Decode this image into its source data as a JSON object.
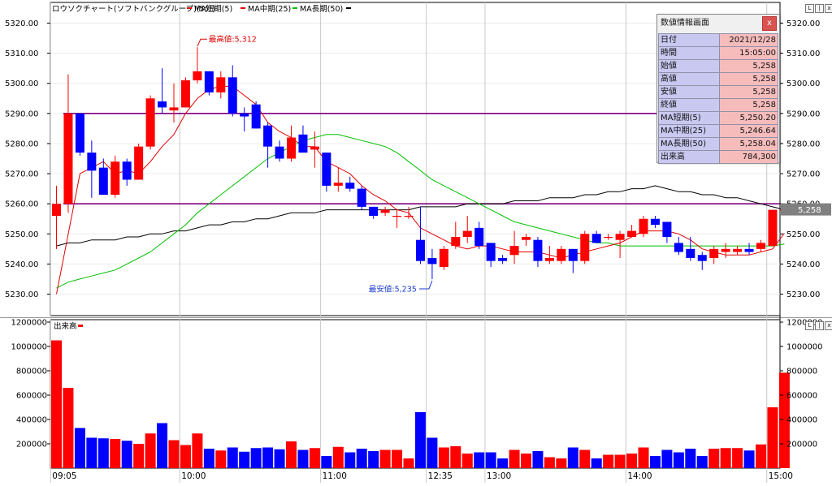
{
  "title_bar": {
    "symbol_label": "ロウソクチャート(ソフトバンクグループ)(5分)",
    "ma_legend": [
      {
        "label": "MA短期(5)",
        "color": "#e00000"
      },
      {
        "label": "MA中期(25)",
        "color": "#e00000"
      },
      {
        "label": "MA長期(50)",
        "color": "#00c000"
      }
    ],
    "legend_end_color": "#000000"
  },
  "window_buttons": [
    "L",
    "|",
    "x"
  ],
  "volume_panel_label": "出来高",
  "info_panel": {
    "title": "数値情報画面",
    "close_label": "x",
    "rows": [
      {
        "key": "日付",
        "value": "2021/12/28"
      },
      {
        "key": "時間",
        "value": "15:05:00"
      },
      {
        "key": "始値",
        "value": "5,258"
      },
      {
        "key": "高値",
        "value": "5,258"
      },
      {
        "key": "安値",
        "value": "5,258"
      },
      {
        "key": "終値",
        "value": "5,258"
      },
      {
        "key": "MA短期(5)",
        "value": "5,250.20"
      },
      {
        "key": "MA中期(25)",
        "value": "5,246.64"
      },
      {
        "key": "MA長期(50)",
        "value": "5,258.04"
      },
      {
        "key": "出来高",
        "value": "784,300"
      }
    ]
  },
  "colors": {
    "up": "#ff0000",
    "down": "#0000ff",
    "ma_short": "#e00000",
    "ma_mid": "#00c000",
    "ma_long": "#000000",
    "hline": "#800080",
    "current_price_bg": "#808080"
  },
  "chart_data": {
    "type": "candlestick",
    "price_axis": {
      "min": 5226,
      "max": 5324,
      "ticks": [
        5230,
        5240,
        5250,
        5260,
        5270,
        5280,
        5290,
        5300,
        5310,
        5320
      ],
      "tick_labels": [
        "5230.00",
        "5240.00",
        "5250.00",
        "5260.00",
        "5270.00",
        "5280.00",
        "5290.00",
        "5300.00",
        "5310.00",
        "5320.00"
      ]
    },
    "volume_axis": {
      "min": 0,
      "max": 1200000,
      "ticks": [
        200000,
        400000,
        600000,
        800000,
        1000000,
        1200000
      ],
      "tick_labels": [
        "200000",
        "400000",
        "600000",
        "800000",
        "1000000",
        "1200000"
      ]
    },
    "time_labels": [
      {
        "label": "09:05",
        "index": 0
      },
      {
        "label": "10:00",
        "index": 11
      },
      {
        "label": "11:00",
        "index": 23
      },
      {
        "label": "12:35",
        "index": 32
      },
      {
        "label": "13:00",
        "index": 37
      },
      {
        "label": "14:00",
        "index": 49
      },
      {
        "label": "15:00",
        "index": 61
      }
    ],
    "candles": [
      {
        "o": 5256,
        "h": 5266,
        "l": 5245,
        "c": 5260,
        "v": 1050000
      },
      {
        "o": 5260,
        "h": 5303,
        "l": 5257,
        "c": 5290,
        "v": 660000
      },
      {
        "o": 5290,
        "h": 5290,
        "l": 5276,
        "c": 5277,
        "v": 330000
      },
      {
        "o": 5277,
        "h": 5281,
        "l": 5262,
        "c": 5271,
        "v": 250000
      },
      {
        "o": 5272,
        "h": 5275,
        "l": 5263,
        "c": 5263,
        "v": 245000
      },
      {
        "o": 5263,
        "h": 5276,
        "l": 5262,
        "c": 5274,
        "v": 240000
      },
      {
        "o": 5274,
        "h": 5275,
        "l": 5266,
        "c": 5268,
        "v": 225000
      },
      {
        "o": 5268,
        "h": 5280,
        "l": 5268,
        "c": 5279,
        "v": 200000
      },
      {
        "o": 5279,
        "h": 5296,
        "l": 5278,
        "c": 5295,
        "v": 285000
      },
      {
        "o": 5294,
        "h": 5305,
        "l": 5290,
        "c": 5292,
        "v": 370000
      },
      {
        "o": 5291,
        "h": 5300,
        "l": 5287,
        "c": 5292,
        "v": 230000
      },
      {
        "o": 5292,
        "h": 5302,
        "l": 5292,
        "c": 5301,
        "v": 190000
      },
      {
        "o": 5301,
        "h": 5312,
        "l": 5300,
        "c": 5304,
        "v": 285000
      },
      {
        "o": 5304,
        "h": 5304,
        "l": 5296,
        "c": 5297,
        "v": 160000
      },
      {
        "o": 5297,
        "h": 5304,
        "l": 5295,
        "c": 5302,
        "v": 145000
      },
      {
        "o": 5302,
        "h": 5306,
        "l": 5289,
        "c": 5290,
        "v": 170000
      },
      {
        "o": 5290,
        "h": 5292,
        "l": 5284,
        "c": 5289,
        "v": 135000
      },
      {
        "o": 5293,
        "h": 5294,
        "l": 5285,
        "c": 5285,
        "v": 165000
      },
      {
        "o": 5286,
        "h": 5287,
        "l": 5272,
        "c": 5279,
        "v": 170000
      },
      {
        "o": 5279,
        "h": 5281,
        "l": 5274,
        "c": 5275,
        "v": 155000
      },
      {
        "o": 5275,
        "h": 5286,
        "l": 5274,
        "c": 5282,
        "v": 220000
      },
      {
        "o": 5283,
        "h": 5286,
        "l": 5277,
        "c": 5277,
        "v": 150000
      },
      {
        "o": 5278,
        "h": 5284,
        "l": 5272,
        "c": 5279,
        "v": 165000
      },
      {
        "o": 5277,
        "h": 5277,
        "l": 5264,
        "c": 5266,
        "v": 100000
      },
      {
        "o": 5266,
        "h": 5272,
        "l": 5264,
        "c": 5267,
        "v": 175000
      },
      {
        "o": 5267,
        "h": 5269,
        "l": 5264,
        "c": 5265,
        "v": 130000
      },
      {
        "o": 5265,
        "h": 5266,
        "l": 5258,
        "c": 5259,
        "v": 160000
      },
      {
        "o": 5259,
        "h": 5259,
        "l": 5255,
        "c": 5256,
        "v": 140000
      },
      {
        "o": 5257,
        "h": 5259,
        "l": 5256,
        "c": 5258,
        "v": 150000
      },
      {
        "o": 5256,
        "h": 5258,
        "l": 5252,
        "c": 5256,
        "v": 150000
      },
      {
        "o": 5256,
        "h": 5259,
        "l": 5255,
        "c": 5256,
        "v": 80000
      },
      {
        "o": 5248,
        "h": 5259,
        "l": 5240,
        "c": 5241,
        "v": 460000
      },
      {
        "o": 5242,
        "h": 5245,
        "l": 5235,
        "c": 5240,
        "v": 250000
      },
      {
        "o": 5239,
        "h": 5246,
        "l": 5238,
        "c": 5245,
        "v": 170000
      },
      {
        "o": 5246,
        "h": 5254,
        "l": 5245,
        "c": 5249,
        "v": 180000
      },
      {
        "o": 5249,
        "h": 5256,
        "l": 5247,
        "c": 5251,
        "v": 120000
      },
      {
        "o": 5252,
        "h": 5254,
        "l": 5245,
        "c": 5246,
        "v": 130000
      },
      {
        "o": 5247,
        "h": 5247,
        "l": 5239,
        "c": 5241,
        "v": 130000
      },
      {
        "o": 5242,
        "h": 5243,
        "l": 5240,
        "c": 5241,
        "v": 80000
      },
      {
        "o": 5243,
        "h": 5251,
        "l": 5240,
        "c": 5246,
        "v": 150000
      },
      {
        "o": 5248,
        "h": 5250,
        "l": 5246,
        "c": 5249,
        "v": 120000
      },
      {
        "o": 5248,
        "h": 5249,
        "l": 5239,
        "c": 5241,
        "v": 140000
      },
      {
        "o": 5241,
        "h": 5246,
        "l": 5240,
        "c": 5242,
        "v": 90000
      },
      {
        "o": 5241,
        "h": 5246,
        "l": 5240,
        "c": 5245,
        "v": 80000
      },
      {
        "o": 5245,
        "h": 5245,
        "l": 5237,
        "c": 5241,
        "v": 170000
      },
      {
        "o": 5241,
        "h": 5251,
        "l": 5240,
        "c": 5250,
        "v": 150000
      },
      {
        "o": 5250,
        "h": 5251,
        "l": 5247,
        "c": 5247,
        "v": 80000
      },
      {
        "o": 5249,
        "h": 5250,
        "l": 5248,
        "c": 5249,
        "v": 110000
      },
      {
        "o": 5248,
        "h": 5251,
        "l": 5242,
        "c": 5250,
        "v": 110000
      },
      {
        "o": 5249,
        "h": 5253,
        "l": 5249,
        "c": 5251,
        "v": 120000
      },
      {
        "o": 5250,
        "h": 5256,
        "l": 5249,
        "c": 5255,
        "v": 170000
      },
      {
        "o": 5255,
        "h": 5256,
        "l": 5252,
        "c": 5253,
        "v": 100000
      },
      {
        "o": 5254,
        "h": 5254,
        "l": 5247,
        "c": 5249,
        "v": 150000
      },
      {
        "o": 5247,
        "h": 5249,
        "l": 5243,
        "c": 5244,
        "v": 130000
      },
      {
        "o": 5245,
        "h": 5249,
        "l": 5241,
        "c": 5242,
        "v": 160000
      },
      {
        "o": 5243,
        "h": 5244,
        "l": 5238,
        "c": 5241,
        "v": 100000
      },
      {
        "o": 5242,
        "h": 5246,
        "l": 5240,
        "c": 5245,
        "v": 160000
      },
      {
        "o": 5244,
        "h": 5247,
        "l": 5242,
        "c": 5245,
        "v": 165000
      },
      {
        "o": 5244,
        "h": 5246,
        "l": 5243,
        "c": 5245,
        "v": 165000
      },
      {
        "o": 5245,
        "h": 5247,
        "l": 5243,
        "c": 5244,
        "v": 145000
      },
      {
        "o": 5245,
        "h": 5248,
        "l": 5244,
        "c": 5247,
        "v": 195000
      },
      {
        "o": 5246,
        "h": 5258,
        "l": 5246,
        "c": 5258,
        "v": 500000
      },
      {
        "o": 5258,
        "h": 5258,
        "l": 5258,
        "c": 5258,
        "v": 784300
      }
    ],
    "ma_short": [
      5230,
      5250,
      5270,
      5272,
      5274,
      5270,
      5271,
      5270,
      5274,
      5279,
      5283,
      5290,
      5295,
      5298,
      5299,
      5299,
      5296,
      5293,
      5287,
      5284,
      5282,
      5279,
      5279,
      5274,
      5272,
      5270,
      5266,
      5263,
      5261,
      5258,
      5257,
      5252,
      5250,
      5248,
      5246,
      5245,
      5246,
      5246,
      5245,
      5244,
      5244,
      5244,
      5243,
      5242,
      5243,
      5244,
      5245,
      5246,
      5247,
      5249,
      5251,
      5251,
      5251,
      5250,
      5248,
      5245,
      5244,
      5243,
      5243,
      5243,
      5244,
      5245,
      5250.2
    ],
    "ma_mid": [
      5232,
      5234,
      5235,
      5236,
      5237,
      5238,
      5240,
      5242,
      5244,
      5247,
      5250,
      5253,
      5257,
      5260,
      5263,
      5266,
      5269,
      5272,
      5275,
      5277,
      5279,
      5281,
      5282,
      5283,
      5283,
      5282,
      5281,
      5280,
      5279,
      5277,
      5274,
      5271,
      5268,
      5266,
      5264,
      5262,
      5260,
      5258,
      5256,
      5254,
      5253,
      5252,
      5251,
      5250,
      5249,
      5248,
      5247,
      5247,
      5246,
      5246,
      5246,
      5246,
      5246,
      5246,
      5246,
      5246,
      5246,
      5246,
      5246,
      5246,
      5246,
      5246,
      5246.64
    ],
    "ma_long": [
      5246,
      5247,
      5247,
      5248,
      5248,
      5248,
      5249,
      5249,
      5250,
      5250,
      5251,
      5251,
      5252,
      5253,
      5253,
      5254,
      5254,
      5255,
      5255,
      5256,
      5257,
      5257,
      5257,
      5258,
      5258,
      5258,
      5258,
      5258,
      5258,
      5258,
      5258,
      5259,
      5259,
      5259,
      5259,
      5260,
      5260,
      5260,
      5260,
      5261,
      5261,
      5261,
      5262,
      5262,
      5262,
      5263,
      5263,
      5264,
      5264,
      5265,
      5265,
      5266,
      5265,
      5264,
      5264,
      5263,
      5263,
      5262,
      5262,
      5261,
      5260,
      5259,
      5258.04
    ],
    "horizontal_lines": [
      {
        "value": 5290,
        "start_index": 1
      },
      {
        "value": 5260,
        "start_index": 1
      }
    ],
    "annotations": [
      {
        "text": "最高値:5,312",
        "value": 5312,
        "index": 12
      },
      {
        "text": "最安値:5,235",
        "value": 5235,
        "index": 32
      }
    ],
    "current_price_label": "5,258"
  }
}
